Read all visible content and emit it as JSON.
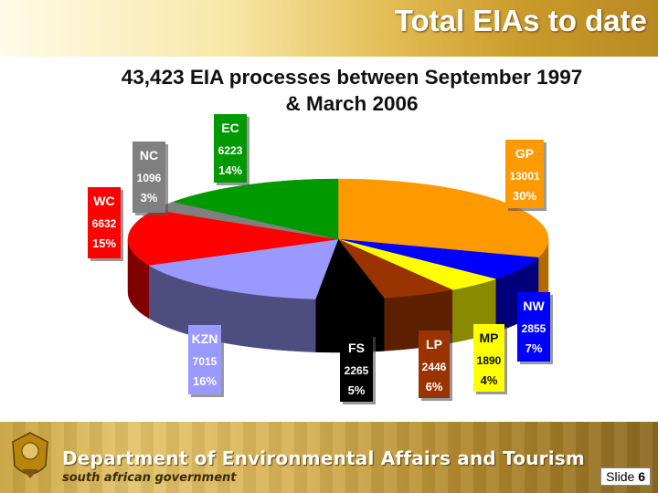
{
  "header": {
    "title": "Total EIAs to date"
  },
  "chart_data": {
    "type": "pie",
    "title": "43,423 EIA processes between September 1997 & March 2006",
    "title_lines": [
      "43,423 EIA processes between September 1997",
      "& March 2006"
    ],
    "slices": [
      {
        "label": "GP",
        "value": 13001,
        "percent": "30%",
        "value_text": "13001",
        "color": "#ff9900",
        "side": "#b36b00"
      },
      {
        "label": "NW",
        "value": 2855,
        "percent": "7%",
        "value_text": "2855",
        "color": "#0000ff",
        "side": "#00007a"
      },
      {
        "label": "MP",
        "value": 1890,
        "percent": "4%",
        "value_text": "1890",
        "color": "#ffff00",
        "side": "#8a8a00"
      },
      {
        "label": "LP",
        "value": 2446,
        "percent": "6%",
        "value_text": "2446",
        "color": "#993300",
        "side": "#5c1f00"
      },
      {
        "label": "FS",
        "value": 2265,
        "percent": "5%",
        "value_text": "2265",
        "color": "#000000",
        "side": "#000000"
      },
      {
        "label": "KZN",
        "value": 7015,
        "percent": "16%",
        "value_text": "7015",
        "color": "#9999ff",
        "side": "#4d4d80"
      },
      {
        "label": "WC",
        "value": 6632,
        "percent": "15%",
        "value_text": "6632",
        "color": "#ff0000",
        "side": "#800000"
      },
      {
        "label": "NC",
        "value": 1096,
        "percent": "3%",
        "value_text": "1096",
        "color": "#808080",
        "side": "#404040"
      },
      {
        "label": "EC",
        "value": 6223,
        "percent": "14%",
        "value_text": "6223",
        "color": "#009900",
        "side": "#004d00"
      }
    ]
  },
  "footer": {
    "department": "Department of Environmental Affairs and Tourism",
    "government": "south african government",
    "slide_label": "Slide",
    "slide_number": "6"
  }
}
